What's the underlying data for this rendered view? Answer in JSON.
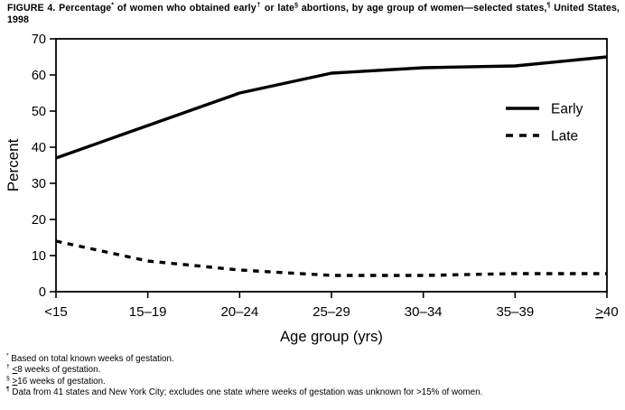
{
  "title": {
    "parts": [
      {
        "text": "FIGURE 4. Percentage"
      },
      {
        "sup": "*"
      },
      {
        "text": " of women who obtained early"
      },
      {
        "sup": "†"
      },
      {
        "text": " or late"
      },
      {
        "sup": "§"
      },
      {
        "text": " abortions, by age group of women—selected states,"
      },
      {
        "sup": "¶"
      },
      {
        "text": " United States, 1998"
      }
    ]
  },
  "chart_data": {
    "type": "line",
    "categories": [
      "<15",
      "15–19",
      "20–24",
      "25–29",
      "30–34",
      "35–39",
      "≥40"
    ],
    "series": [
      {
        "name": "Early",
        "style": "solid",
        "values": [
          37,
          46,
          55,
          60.5,
          62,
          62.5,
          65
        ]
      },
      {
        "name": "Late",
        "style": "dashed",
        "values": [
          14,
          8.5,
          6,
          4.5,
          4.5,
          5,
          5
        ]
      }
    ],
    "xlabel": "Age group (yrs)",
    "ylabel": "Percent",
    "ylim": [
      0,
      70
    ],
    "ytick_step": 10,
    "grid": false,
    "legend_position": "inside-upper-right",
    "colors": {
      "line": "#000000",
      "background": "#ffffff"
    }
  },
  "footnotes": [
    {
      "marker": "*",
      "lead": "",
      "text": "Based on total known weeks of gestation."
    },
    {
      "marker": "†",
      "lead": "<",
      "text": "8 weeks of gestation."
    },
    {
      "marker": "§",
      "lead": ">",
      "text": "16 weeks of gestation."
    },
    {
      "marker": "¶",
      "lead": "",
      "text": "Data from 41 states and New York City; excludes one state where weeks of gestation was unknown for >15% of women."
    }
  ]
}
